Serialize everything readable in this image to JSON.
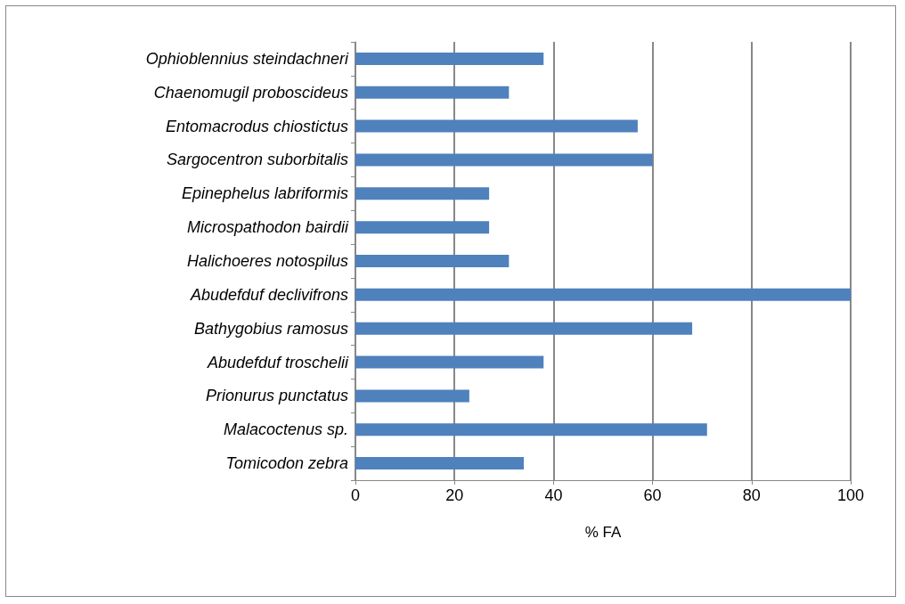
{
  "chart_data": {
    "type": "bar",
    "orientation": "horizontal",
    "xlabel": "% FA",
    "categories": [
      "Ophioblennius steindachneri",
      "Chaenomugil proboscideus",
      "Entomacrodus chiostictus",
      "Sargocentron suborbitalis",
      "Epinephelus labriformis",
      "Microspathodon bairdii",
      "Halichoeres notospilus",
      "Abudefduf declivifrons",
      "Bathygobius ramosus",
      "Abudefduf troschelii",
      "Prionurus punctatus",
      "Malacoctenus sp.",
      "Tomicodon zebra"
    ],
    "values": [
      38,
      31,
      57,
      60,
      27,
      27,
      31,
      100,
      68,
      38,
      23,
      71,
      34
    ],
    "color": "#4f81bd",
    "xlim": [
      0,
      100
    ],
    "xticks": [
      0,
      20,
      40,
      60,
      80,
      100
    ],
    "grid": "x"
  }
}
